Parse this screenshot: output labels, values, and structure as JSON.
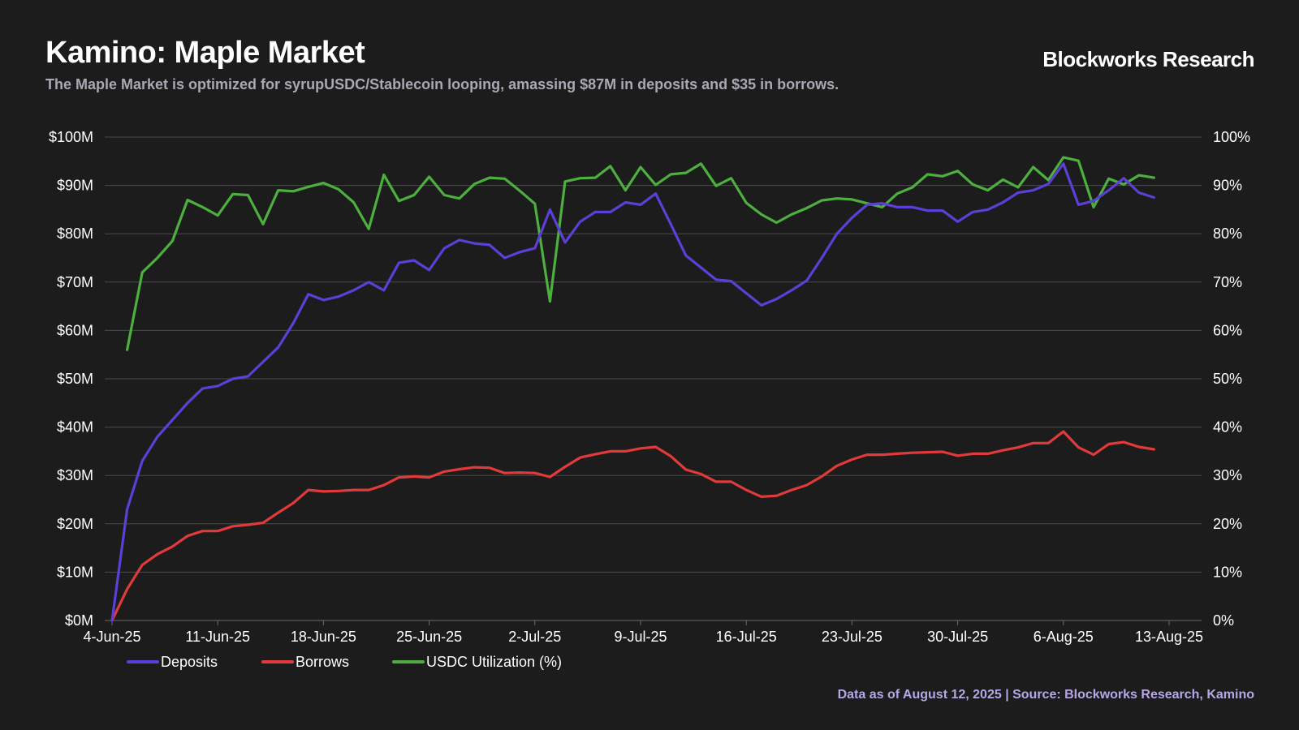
{
  "header": {
    "title": "Kamino: Maple Market",
    "subtitle": "The Maple Market is optimized for syrupUSDC/Stablecoin looping, amassing $87M in deposits and $35 in borrows.",
    "brand": "Blockworks Research"
  },
  "footer": {
    "source": "Data as of August 12, 2025 | Source: Blockworks Research, Kamino"
  },
  "colors": {
    "background": "#1c1c1c",
    "grid": "#4a4a4a",
    "deposits": "#5b3fd6",
    "borrows": "#e03a3a",
    "utilization": "#4caf3e"
  },
  "chart_data": {
    "type": "line",
    "title": "Kamino: Maple Market",
    "x_ticks": [
      "4-Jun-25",
      "11-Jun-25",
      "18-Jun-25",
      "25-Jun-25",
      "2-Jul-25",
      "9-Jul-25",
      "16-Jul-25",
      "23-Jul-25",
      "30-Jul-25",
      "6-Aug-25",
      "13-Aug-25"
    ],
    "y_left_ticks": [
      "$0M",
      "$10M",
      "$20M",
      "$30M",
      "$40M",
      "$50M",
      "$60M",
      "$70M",
      "$80M",
      "$90M",
      "$100M"
    ],
    "y_right_ticks": [
      "0%",
      "10%",
      "20%",
      "30%",
      "40%",
      "50%",
      "60%",
      "70%",
      "80%",
      "90%",
      "100%"
    ],
    "ylim_left": [
      0,
      100
    ],
    "ylim_right": [
      0,
      100
    ],
    "x_start": "2025-06-04",
    "x_end": "2025-08-13",
    "grid": true,
    "legend_position": "bottom-left",
    "series": [
      {
        "name": "Deposits",
        "axis": "left",
        "color": "#5b3fd6",
        "x": [
          "2025-06-04",
          "2025-06-05",
          "2025-06-06",
          "2025-06-07",
          "2025-06-08",
          "2025-06-09",
          "2025-06-10",
          "2025-06-11",
          "2025-06-12",
          "2025-06-13",
          "2025-06-14",
          "2025-06-15",
          "2025-06-16",
          "2025-06-17",
          "2025-06-18",
          "2025-06-19",
          "2025-06-20",
          "2025-06-21",
          "2025-06-22",
          "2025-06-23",
          "2025-06-24",
          "2025-06-25",
          "2025-06-26",
          "2025-06-27",
          "2025-06-28",
          "2025-06-29",
          "2025-06-30",
          "2025-07-01",
          "2025-07-02",
          "2025-07-03",
          "2025-07-04",
          "2025-07-05",
          "2025-07-06",
          "2025-07-07",
          "2025-07-08",
          "2025-07-09",
          "2025-07-10",
          "2025-07-11",
          "2025-07-12",
          "2025-07-13",
          "2025-07-14",
          "2025-07-15",
          "2025-07-16",
          "2025-07-17",
          "2025-07-18",
          "2025-07-19",
          "2025-07-20",
          "2025-07-21",
          "2025-07-22",
          "2025-07-23",
          "2025-07-24",
          "2025-07-25",
          "2025-07-26",
          "2025-07-27",
          "2025-07-28",
          "2025-07-29",
          "2025-07-30",
          "2025-07-31",
          "2025-08-01",
          "2025-08-02",
          "2025-08-03",
          "2025-08-04",
          "2025-08-05",
          "2025-08-06",
          "2025-08-07",
          "2025-08-08",
          "2025-08-09",
          "2025-08-10",
          "2025-08-11",
          "2025-08-12"
        ],
        "values": [
          0,
          23,
          33,
          38,
          41.5,
          45,
          48,
          48.5,
          50,
          50.5,
          53.5,
          56.5,
          61.5,
          67.5,
          66.3,
          67,
          68.3,
          70,
          68.3,
          74,
          74.5,
          72.5,
          77,
          78.7,
          78,
          77.7,
          75,
          76.2,
          77,
          85,
          78.2,
          82.5,
          84.5,
          84.5,
          86.5,
          86,
          88.3,
          82,
          75.5,
          73,
          70.5,
          70.2,
          67.7,
          65.2,
          66.5,
          68.3,
          70.3,
          75,
          80,
          83.3,
          86,
          86.3,
          85.5,
          85.5,
          84.8,
          84.8,
          82.5,
          84.5,
          85,
          86.5,
          88.5,
          89,
          90.3,
          94.5,
          86,
          86.8,
          89,
          91.5,
          88.5,
          87.5
        ]
      },
      {
        "name": "Borrows",
        "axis": "left",
        "color": "#e03a3a",
        "x": [
          "2025-06-04",
          "2025-06-05",
          "2025-06-06",
          "2025-06-07",
          "2025-06-08",
          "2025-06-09",
          "2025-06-10",
          "2025-06-11",
          "2025-06-12",
          "2025-06-13",
          "2025-06-14",
          "2025-06-15",
          "2025-06-16",
          "2025-06-17",
          "2025-06-18",
          "2025-06-19",
          "2025-06-20",
          "2025-06-21",
          "2025-06-22",
          "2025-06-23",
          "2025-06-24",
          "2025-06-25",
          "2025-06-26",
          "2025-06-27",
          "2025-06-28",
          "2025-06-29",
          "2025-06-30",
          "2025-07-01",
          "2025-07-02",
          "2025-07-03",
          "2025-07-04",
          "2025-07-05",
          "2025-07-06",
          "2025-07-07",
          "2025-07-08",
          "2025-07-09",
          "2025-07-10",
          "2025-07-11",
          "2025-07-12",
          "2025-07-13",
          "2025-07-14",
          "2025-07-15",
          "2025-07-16",
          "2025-07-17",
          "2025-07-18",
          "2025-07-19",
          "2025-07-20",
          "2025-07-21",
          "2025-07-22",
          "2025-07-23",
          "2025-07-24",
          "2025-07-25",
          "2025-07-26",
          "2025-07-27",
          "2025-07-28",
          "2025-07-29",
          "2025-07-30",
          "2025-07-31",
          "2025-08-01",
          "2025-08-02",
          "2025-08-03",
          "2025-08-04",
          "2025-08-05",
          "2025-08-06",
          "2025-08-07",
          "2025-08-08",
          "2025-08-09",
          "2025-08-10",
          "2025-08-11",
          "2025-08-12"
        ],
        "values": [
          0,
          6.5,
          11.5,
          13.7,
          15.3,
          17.5,
          18.5,
          18.5,
          19.5,
          19.8,
          20.2,
          22.3,
          24.3,
          27,
          26.7,
          26.8,
          27,
          27,
          28,
          29.6,
          29.8,
          29.6,
          30.8,
          31.3,
          31.7,
          31.6,
          30.5,
          30.6,
          30.5,
          29.7,
          31.8,
          33.7,
          34.4,
          35,
          35,
          35.6,
          35.9,
          34,
          31.2,
          30.3,
          28.7,
          28.7,
          27,
          25.6,
          25.8,
          27,
          28,
          29.8,
          32,
          33.3,
          34.3,
          34.3,
          34.5,
          34.7,
          34.8,
          34.9,
          34.1,
          34.5,
          34.5,
          35.2,
          35.8,
          36.7,
          36.7,
          39.1,
          35.8,
          34.3,
          36.5,
          36.9,
          35.9,
          35.4
        ]
      },
      {
        "name": "USDC Utilization (%)",
        "axis": "right",
        "color": "#4caf3e",
        "x": [
          "2025-06-05",
          "2025-06-06",
          "2025-06-07",
          "2025-06-08",
          "2025-06-09",
          "2025-06-10",
          "2025-06-11",
          "2025-06-12",
          "2025-06-13",
          "2025-06-14",
          "2025-06-15",
          "2025-06-16",
          "2025-06-17",
          "2025-06-18",
          "2025-06-19",
          "2025-06-20",
          "2025-06-21",
          "2025-06-22",
          "2025-06-23",
          "2025-06-24",
          "2025-06-25",
          "2025-06-26",
          "2025-06-27",
          "2025-06-28",
          "2025-06-29",
          "2025-06-30",
          "2025-07-01",
          "2025-07-02",
          "2025-07-03",
          "2025-07-04",
          "2025-07-05",
          "2025-07-06",
          "2025-07-07",
          "2025-07-08",
          "2025-07-09",
          "2025-07-10",
          "2025-07-11",
          "2025-07-12",
          "2025-07-13",
          "2025-07-14",
          "2025-07-15",
          "2025-07-16",
          "2025-07-17",
          "2025-07-18",
          "2025-07-19",
          "2025-07-20",
          "2025-07-21",
          "2025-07-22",
          "2025-07-23",
          "2025-07-24",
          "2025-07-25",
          "2025-07-26",
          "2025-07-27",
          "2025-07-28",
          "2025-07-29",
          "2025-07-30",
          "2025-07-31",
          "2025-08-01",
          "2025-08-02",
          "2025-08-03",
          "2025-08-04",
          "2025-08-05",
          "2025-08-06",
          "2025-08-07",
          "2025-08-08",
          "2025-08-09",
          "2025-08-10",
          "2025-08-11",
          "2025-08-12"
        ],
        "values": [
          56,
          72,
          75,
          78.5,
          87,
          85.5,
          83.8,
          88.2,
          88,
          82,
          89,
          88.8,
          89.7,
          90.5,
          89.2,
          86.5,
          81,
          92.2,
          86.8,
          88,
          91.8,
          88,
          87.3,
          90.3,
          91.6,
          91.4,
          88.9,
          86.2,
          66,
          90.8,
          91.5,
          91.6,
          94,
          89,
          93.8,
          90.1,
          92.3,
          92.6,
          94.5,
          89.9,
          91.5,
          86.4,
          84,
          82.3,
          84,
          85.3,
          86.9,
          87.3,
          87.1,
          86.3,
          85.5,
          88.3,
          89.6,
          92.3,
          91.9,
          93,
          90.2,
          89,
          91.2,
          89.6,
          93.8,
          91.1,
          95.8,
          95.1,
          85.5,
          91.4,
          90.2,
          92.1,
          91.6
        ]
      }
    ]
  }
}
